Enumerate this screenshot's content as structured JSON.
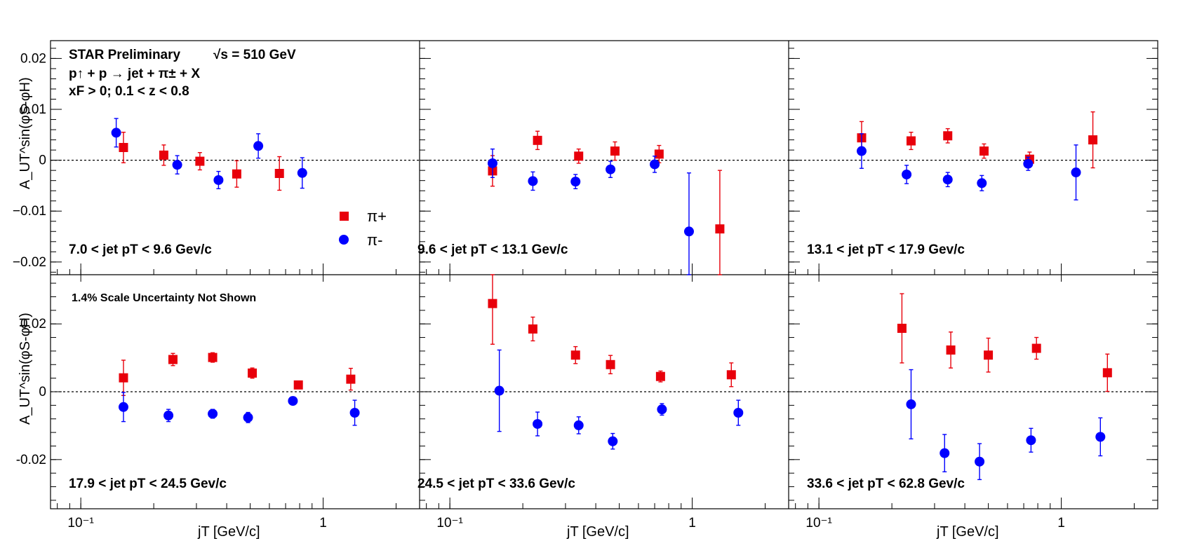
{
  "chart_data": {
    "type": "scatter",
    "title": "STAR Preliminary",
    "energy_label": "√s = 510 GeV",
    "process_label": "p↑ + p → jet + π± + X",
    "cuts_label": "xF > 0;   0.1 < z < 0.8",
    "scale_note": "1.4% Scale Uncertainty Not Shown",
    "xlabel": "jT [GeV/c]",
    "ylabel": "A_UT^sin(φS-φH)",
    "x_scale": "log",
    "xlim": [
      0.075,
      2.5
    ],
    "x_tick_labels": [
      "10⁻¹",
      "1"
    ],
    "legend": {
      "placement": "top-panel-1 right",
      "entries": [
        {
          "name": "π+",
          "color": "#e8000b",
          "marker": "square"
        },
        {
          "name": "π-",
          "color": "#0000ff",
          "marker": "circle"
        }
      ]
    },
    "rows": [
      {
        "ylim": [
          -0.0225,
          0.0235
        ],
        "y_ticks": [
          -0.02,
          -0.01,
          0,
          0.01,
          0.02
        ],
        "y_tick_labels": [
          "−0.02",
          "−0.01",
          "0",
          "0.01",
          "0.02"
        ]
      },
      {
        "ylim": [
          -0.0345,
          0.0345
        ],
        "y_ticks": [
          -0.02,
          0,
          0.02
        ],
        "y_tick_labels": [
          "-0.02",
          "0",
          "0.02"
        ]
      }
    ],
    "panels": [
      {
        "label": "7.0 < jet pT < 9.6 Gev/c",
        "pi_plus": {
          "x": [
            0.15,
            0.22,
            0.31,
            0.44,
            0.66
          ],
          "y": [
            0.0025,
            0.001,
            -0.0002,
            -0.0027,
            -0.0026
          ],
          "err": [
            0.003,
            0.002,
            0.0017,
            0.0026,
            0.0033
          ]
        },
        "pi_minus": {
          "x": [
            0.14,
            0.25,
            0.37,
            0.54,
            0.82
          ],
          "y": [
            0.0054,
            -0.0009,
            -0.0039,
            0.0028,
            -0.0025
          ],
          "err": [
            0.0028,
            0.0018,
            0.0017,
            0.0024,
            0.003
          ]
        }
      },
      {
        "label": "9.6 < jet pT < 13.1 Gev/c",
        "pi_plus": {
          "x": [
            0.15,
            0.23,
            0.34,
            0.48,
            0.73,
            1.3
          ],
          "y": [
            -0.0021,
            0.0039,
            0.0008,
            0.0018,
            0.0012,
            -0.0135
          ],
          "err": [
            0.003,
            0.0018,
            0.0014,
            0.0018,
            0.0017,
            0.0115
          ]
        },
        "pi_minus": {
          "x": [
            0.15,
            0.22,
            0.33,
            0.46,
            0.7,
            0.97
          ],
          "y": [
            -0.0006,
            -0.0041,
            -0.0042,
            -0.0018,
            -0.0008,
            -0.014
          ],
          "err": [
            0.0028,
            0.0018,
            0.0014,
            0.0016,
            0.0016,
            0.0115
          ]
        }
      },
      {
        "label": "13.1 < jet pT < 17.9 Gev/c",
        "pi_plus": {
          "x": [
            0.15,
            0.24,
            0.34,
            0.48,
            0.74,
            1.35
          ],
          "y": [
            0.0044,
            0.0038,
            0.0048,
            0.0018,
            0.0002,
            0.004
          ],
          "err": [
            0.0032,
            0.0017,
            0.0014,
            0.0014,
            0.0014,
            0.0055
          ]
        },
        "pi_minus": {
          "x": [
            0.15,
            0.23,
            0.34,
            0.47,
            0.73,
            1.15
          ],
          "y": [
            0.0018,
            -0.0028,
            -0.0038,
            -0.0045,
            -0.0007,
            -0.0024
          ],
          "err": [
            0.0034,
            0.0018,
            0.0014,
            0.0015,
            0.0013,
            0.0054
          ]
        }
      },
      {
        "label": "17.9 < jet pT < 24.5 Gev/c",
        "pi_plus": {
          "x": [
            0.15,
            0.24,
            0.35,
            0.51,
            0.79,
            1.3
          ],
          "y": [
            0.0041,
            0.0095,
            0.0101,
            0.0055,
            0.002,
            0.0037
          ],
          "err": [
            0.0052,
            0.0018,
            0.0014,
            0.0015,
            0.0011,
            0.0032
          ]
        },
        "pi_minus": {
          "x": [
            0.15,
            0.23,
            0.35,
            0.49,
            0.75,
            1.35
          ],
          "y": [
            -0.0045,
            -0.007,
            -0.0065,
            -0.0076,
            -0.0027,
            -0.0062
          ],
          "err": [
            0.0043,
            0.0018,
            0.0013,
            0.0015,
            0.0012,
            0.0037
          ]
        }
      },
      {
        "label": "24.5 < jet pT < 33.6 Gev/c",
        "pi_plus": {
          "x": [
            0.15,
            0.22,
            0.33,
            0.46,
            0.74,
            1.45
          ],
          "y": [
            0.026,
            0.0185,
            0.0108,
            0.008,
            0.0045,
            0.005
          ],
          "err": [
            0.012,
            0.0035,
            0.0025,
            0.0027,
            0.0016,
            0.0035
          ]
        },
        "pi_minus": {
          "x": [
            0.16,
            0.23,
            0.34,
            0.47,
            0.75,
            1.55
          ],
          "y": [
            0.0003,
            -0.0095,
            -0.0099,
            -0.0146,
            -0.0052,
            -0.0062
          ],
          "err": [
            0.012,
            0.0035,
            0.0025,
            0.0023,
            0.0017,
            0.0037
          ]
        }
      },
      {
        "label": "33.6 < jet pT < 62.8 Gev/c",
        "pi_plus": {
          "x": [
            0.22,
            0.35,
            0.5,
            0.79,
            1.55
          ],
          "y": [
            0.0187,
            0.0123,
            0.0108,
            0.0128,
            0.0056
          ],
          "err": [
            0.0102,
            0.0053,
            0.005,
            0.0032,
            0.0055
          ]
        },
        "pi_minus": {
          "x": [
            0.24,
            0.33,
            0.46,
            0.75,
            1.45
          ],
          "y": [
            -0.0037,
            -0.0181,
            -0.0206,
            -0.0143,
            -0.0133
          ],
          "err": [
            0.0102,
            0.0055,
            0.0053,
            0.0035,
            0.0056
          ]
        }
      }
    ]
  }
}
